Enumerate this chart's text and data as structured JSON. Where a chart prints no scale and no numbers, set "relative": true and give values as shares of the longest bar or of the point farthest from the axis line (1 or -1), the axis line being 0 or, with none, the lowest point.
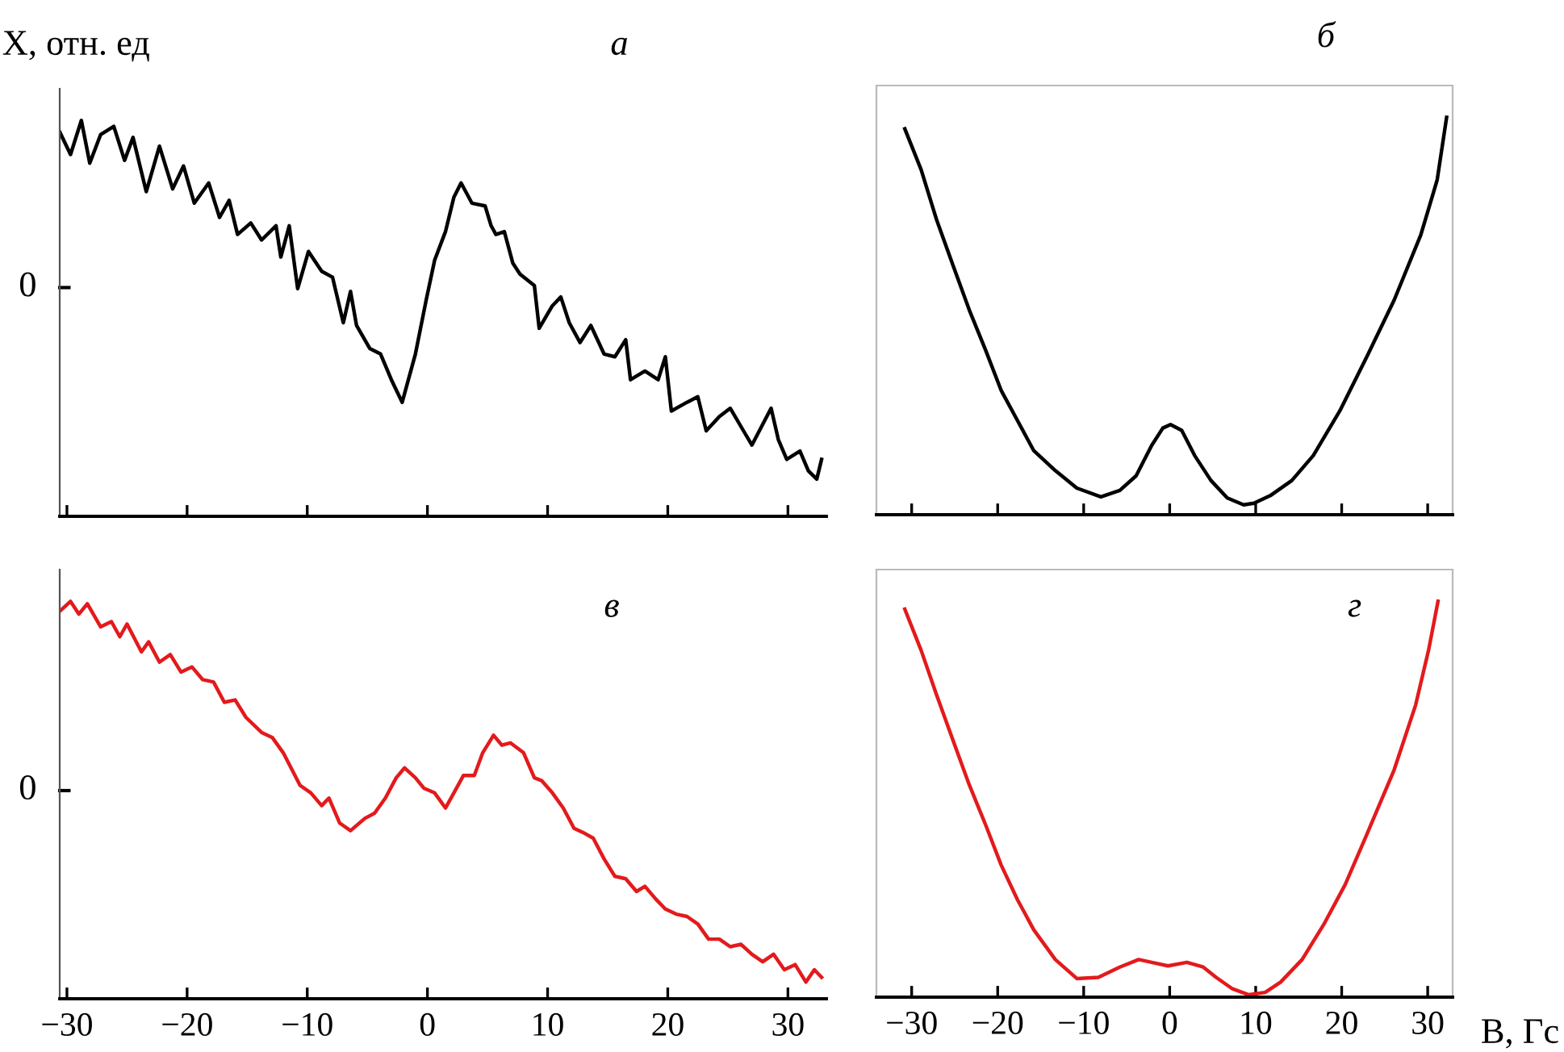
{
  "chart_data": [
    {
      "type": "line",
      "title": "а",
      "ylabel": "X, отн. ед",
      "relative": true,
      "xlim": [
        -30.6,
        33.2
      ],
      "xticks": [
        -30,
        -20,
        -10,
        0,
        10,
        20,
        30
      ],
      "tick_labels": false,
      "grid": false,
      "legend": false,
      "annotations": [
        "0"
      ],
      "series": [
        {
          "color": "#000000",
          "x": [
            -30.6,
            -29.7,
            -28.8,
            -28.1,
            -27.2,
            -26.1,
            -25.2,
            -24.5,
            -23.4,
            -22.3,
            -21.2,
            -20.3,
            -19.4,
            -18.2,
            -17.3,
            -16.5,
            -15.8,
            -14.7,
            -13.8,
            -12.6,
            -12.2,
            -11.5,
            -10.8,
            -9.9,
            -8.8,
            -7.9,
            -7.0,
            -6.4,
            -5.9,
            -4.8,
            -3.9,
            -3.0,
            -2.1,
            -1.0,
            -0.1,
            0.6,
            1.5,
            2.2,
            2.8,
            3.7,
            4.8,
            5.3,
            5.7,
            6.4,
            7.1,
            7.7,
            8.9,
            9.3,
            10.4,
            11.1,
            11.8,
            12.7,
            13.6,
            14.7,
            15.6,
            16.5,
            16.9,
            18.1,
            19.2,
            19.8,
            20.3,
            21.6,
            22.5,
            23.2,
            24.3,
            25.2,
            26.3,
            27.0,
            28.6,
            29.2,
            29.9,
            31.0,
            31.7,
            32.4,
            32.8
          ],
          "values": [
            0.971,
            0.914,
            1.0,
            0.892,
            0.964,
            0.985,
            0.899,
            0.957,
            0.82,
            0.935,
            0.827,
            0.885,
            0.791,
            0.842,
            0.755,
            0.798,
            0.712,
            0.741,
            0.698,
            0.734,
            0.655,
            0.734,
            0.575,
            0.669,
            0.619,
            0.604,
            0.489,
            0.568,
            0.482,
            0.424,
            0.41,
            0.345,
            0.288,
            0.41,
            0.547,
            0.647,
            0.719,
            0.806,
            0.842,
            0.791,
            0.784,
            0.734,
            0.712,
            0.719,
            0.64,
            0.612,
            0.583,
            0.475,
            0.532,
            0.554,
            0.489,
            0.439,
            0.482,
            0.41,
            0.403,
            0.446,
            0.345,
            0.367,
            0.345,
            0.403,
            0.266,
            0.288,
            0.302,
            0.216,
            0.252,
            0.273,
            0.216,
            0.18,
            0.273,
            0.194,
            0.144,
            0.165,
            0.115,
            0.094,
            0.144
          ]
        }
      ]
    },
    {
      "type": "line",
      "title": "б",
      "relative": true,
      "xlim": [
        -34.1,
        32.9
      ],
      "xticks": [
        -30,
        -20,
        -10,
        0,
        10,
        20,
        30
      ],
      "tick_labels": false,
      "grid": false,
      "legend": false,
      "series": [
        {
          "color": "#000000",
          "x": [
            -30.8,
            -28.9,
            -27.1,
            -25.2,
            -23.3,
            -21.4,
            -19.6,
            -17.7,
            -15.8,
            -13.3,
            -10.8,
            -8.0,
            -5.8,
            -3.9,
            -2.1,
            -0.8,
            0.1,
            1.4,
            2.9,
            4.8,
            6.7,
            8.6,
            9.8,
            11.7,
            14.2,
            16.7,
            19.8,
            23.0,
            26.1,
            29.2,
            31.1,
            32.2
          ],
          "values": [
            0.971,
            0.868,
            0.742,
            0.628,
            0.515,
            0.414,
            0.313,
            0.237,
            0.161,
            0.111,
            0.067,
            0.045,
            0.061,
            0.098,
            0.174,
            0.218,
            0.227,
            0.212,
            0.149,
            0.086,
            0.042,
            0.025,
            0.029,
            0.048,
            0.086,
            0.149,
            0.262,
            0.401,
            0.54,
            0.704,
            0.842,
            1.0
          ]
        }
      ]
    },
    {
      "type": "line",
      "title": "в",
      "relative": true,
      "xlim": [
        -30.6,
        33.2
      ],
      "xticks": [
        -30,
        -20,
        -10,
        0,
        10,
        20,
        30
      ],
      "tick_labels": "x",
      "grid": false,
      "legend": false,
      "annotations": [
        "0"
      ],
      "series": [
        {
          "color": "#e31a1c",
          "x": [
            -30.6,
            -29.7,
            -29.0,
            -28.3,
            -27.2,
            -26.3,
            -25.6,
            -25.0,
            -23.8,
            -23.2,
            -22.3,
            -21.4,
            -20.5,
            -19.6,
            -18.7,
            -17.8,
            -16.9,
            -16.0,
            -15.1,
            -13.8,
            -12.9,
            -12.0,
            -10.6,
            -9.7,
            -8.8,
            -8.2,
            -7.3,
            -6.4,
            -5.2,
            -4.4,
            -3.5,
            -2.6,
            -1.9,
            -1.0,
            -0.3,
            0.6,
            1.5,
            2.2,
            3.0,
            3.9,
            4.6,
            5.5,
            6.2,
            6.9,
            8.0,
            8.9,
            9.5,
            10.4,
            11.3,
            12.2,
            13.1,
            13.8,
            14.7,
            15.6,
            16.5,
            17.4,
            18.1,
            19.0,
            19.8,
            20.7,
            21.6,
            22.5,
            23.4,
            24.3,
            25.2,
            26.1,
            27.0,
            27.9,
            28.8,
            29.7,
            30.6,
            31.5,
            32.2,
            32.8
          ],
          "values": [
            0.975,
            1.0,
            0.968,
            0.994,
            0.936,
            0.949,
            0.911,
            0.943,
            0.873,
            0.898,
            0.847,
            0.866,
            0.822,
            0.835,
            0.803,
            0.797,
            0.746,
            0.752,
            0.708,
            0.67,
            0.657,
            0.619,
            0.537,
            0.518,
            0.486,
            0.505,
            0.442,
            0.423,
            0.454,
            0.467,
            0.505,
            0.556,
            0.581,
            0.556,
            0.53,
            0.518,
            0.48,
            0.518,
            0.562,
            0.562,
            0.619,
            0.663,
            0.638,
            0.644,
            0.619,
            0.556,
            0.549,
            0.518,
            0.48,
            0.429,
            0.416,
            0.404,
            0.352,
            0.308,
            0.302,
            0.27,
            0.283,
            0.251,
            0.226,
            0.213,
            0.207,
            0.188,
            0.15,
            0.15,
            0.131,
            0.137,
            0.112,
            0.093,
            0.112,
            0.073,
            0.086,
            0.042,
            0.073,
            0.054
          ]
        }
      ]
    },
    {
      "type": "line",
      "title": "г",
      "xlabel": "B, Гс",
      "relative": true,
      "xlim": [
        -34.1,
        32.9
      ],
      "xticks": [
        -30,
        -20,
        -10,
        0,
        10,
        20,
        30
      ],
      "tick_labels": "x",
      "grid": false,
      "legend": false,
      "series": [
        {
          "color": "#e31a1c",
          "x": [
            -30.8,
            -28.9,
            -27.1,
            -25.2,
            -23.3,
            -21.4,
            -19.6,
            -17.7,
            -15.8,
            -13.3,
            -10.8,
            -8.3,
            -5.8,
            -3.6,
            -2.1,
            -0.2,
            2.0,
            3.9,
            5.4,
            7.3,
            9.2,
            11.1,
            12.9,
            15.4,
            17.9,
            20.4,
            22.9,
            26.1,
            28.6,
            30.1,
            31.2
          ],
          "values": [
            0.98,
            0.876,
            0.763,
            0.649,
            0.536,
            0.435,
            0.334,
            0.246,
            0.17,
            0.095,
            0.047,
            0.05,
            0.076,
            0.095,
            0.088,
            0.079,
            0.088,
            0.076,
            0.05,
            0.021,
            0.006,
            0.012,
            0.038,
            0.095,
            0.183,
            0.284,
            0.41,
            0.574,
            0.738,
            0.876,
            1.0
          ]
        }
      ]
    }
  ]
}
